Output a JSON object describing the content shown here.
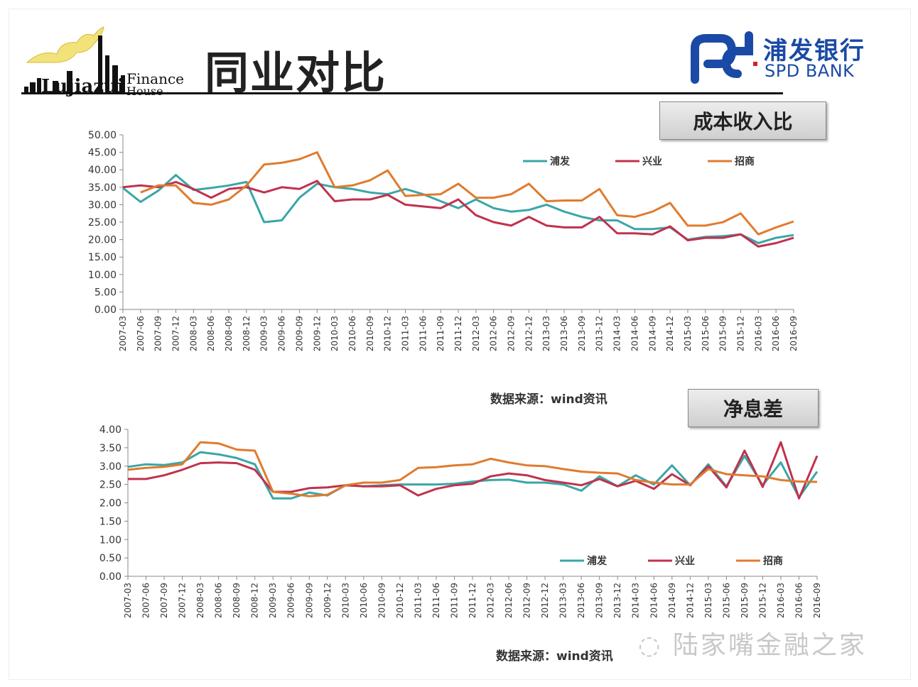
{
  "header": {
    "title": "同业对比",
    "logo_text_1": "Finance",
    "logo_text_2": "House",
    "logo_text_3": "Lujiazui",
    "bank_cn": "浦发银行",
    "bank_en": "SPD BANK"
  },
  "watermark": "陆家嘴金融之家",
  "colors": {
    "pufa": "#3aa6a8",
    "xingye": "#c0324c",
    "zhaoshang": "#e07b2e",
    "bank_blue": "#1a4aa5"
  },
  "chart_data": [
    {
      "type": "line",
      "title": "成本收入比",
      "source": "数据来源：wind资讯",
      "categories": [
        "2007-03",
        "2007-06",
        "2007-09",
        "2007-12",
        "2008-03",
        "2008-06",
        "2008-09",
        "2008-12",
        "2009-03",
        "2009-06",
        "2009-09",
        "2009-12",
        "2010-03",
        "2010-06",
        "2010-09",
        "2010-12",
        "2011-03",
        "2011-06",
        "2011-09",
        "2011-12",
        "2012-03",
        "2012-06",
        "2012-09",
        "2012-12",
        "2013-03",
        "2013-06",
        "2013-09",
        "2013-12",
        "2014-03",
        "2014-06",
        "2014-09",
        "2014-12",
        "2015-03",
        "2015-06",
        "2015-09",
        "2015-12",
        "2016-03",
        "2016-06",
        "2016-09"
      ],
      "ylim": [
        0,
        50
      ],
      "yticks": [
        "0.00",
        "5.00",
        "10.00",
        "15.00",
        "20.00",
        "25.00",
        "30.00",
        "35.00",
        "40.00",
        "45.00",
        "50.00"
      ],
      "legend_position": "top-right",
      "series": [
        {
          "name": "浦发",
          "color": "#3aa6a8",
          "values": [
            34.8,
            30.8,
            34.0,
            38.5,
            34.2,
            34.8,
            35.5,
            36.5,
            25.0,
            25.5,
            32.0,
            36.0,
            35.0,
            34.5,
            33.5,
            33.0,
            34.5,
            33.0,
            31.0,
            29.0,
            31.5,
            29.0,
            28.0,
            28.5,
            30.0,
            28.0,
            26.5,
            25.5,
            25.5,
            23.0,
            23.0,
            23.5,
            20.0,
            20.8,
            21.0,
            21.5,
            19.0,
            20.5,
            21.3
          ]
        },
        {
          "name": "兴业",
          "color": "#c0324c",
          "values": [
            35.0,
            35.5,
            35.0,
            36.5,
            34.5,
            32.0,
            34.5,
            35.0,
            33.5,
            35.0,
            34.5,
            36.8,
            31.0,
            31.5,
            31.5,
            32.8,
            30.0,
            29.5,
            29.0,
            31.5,
            27.0,
            25.0,
            24.0,
            26.5,
            24.0,
            23.5,
            23.5,
            26.5,
            21.8,
            21.8,
            21.5,
            23.8,
            19.8,
            20.5,
            20.5,
            21.5,
            18.0,
            19.0,
            20.5
          ]
        },
        {
          "name": "招商",
          "color": "#e07b2e",
          "values": [
            null,
            33.5,
            35.5,
            35.5,
            30.5,
            30.0,
            31.5,
            35.5,
            41.5,
            42.0,
            43.0,
            45.0,
            35.0,
            35.5,
            37.0,
            39.8,
            32.5,
            32.8,
            33.0,
            36.0,
            32.0,
            32.0,
            33.0,
            36.0,
            31.0,
            31.2,
            31.2,
            34.5,
            27.0,
            26.5,
            28.0,
            30.5,
            24.0,
            24.0,
            25.0,
            27.5,
            21.5,
            23.5,
            25.2
          ]
        }
      ]
    },
    {
      "type": "line",
      "title": "净息差",
      "source": "数据来源：wind资讯",
      "categories": [
        "2007-03",
        "2007-06",
        "2007-09",
        "2007-12",
        "2008-03",
        "2008-06",
        "2008-09",
        "2008-12",
        "2009-03",
        "2009-06",
        "2009-09",
        "2009-12",
        "2010-03",
        "2010-06",
        "2010-09",
        "2010-12",
        "2011-03",
        "2011-06",
        "2011-09",
        "2011-12",
        "2012-03",
        "2012-06",
        "2012-09",
        "2012-12",
        "2013-03",
        "2013-06",
        "2013-09",
        "2013-12",
        "2014-03",
        "2014-06",
        "2014-09",
        "2014-12",
        "2015-03",
        "2015-06",
        "2015-09",
        "2015-12",
        "2016-03",
        "2016-06",
        "2016-09"
      ],
      "ylim": [
        0,
        4
      ],
      "yticks": [
        "0.00",
        "0.50",
        "1.00",
        "1.50",
        "2.00",
        "2.50",
        "3.00",
        "3.50",
        "4.00"
      ],
      "legend_position": "bottom-right",
      "series": [
        {
          "name": "浦发",
          "color": "#3aa6a8",
          "values": [
            2.98,
            3.05,
            3.03,
            3.1,
            3.38,
            3.32,
            3.22,
            3.05,
            2.12,
            2.12,
            2.28,
            2.2,
            2.48,
            2.45,
            2.48,
            2.5,
            2.5,
            2.5,
            2.52,
            2.58,
            2.62,
            2.63,
            2.55,
            2.55,
            2.5,
            2.33,
            2.72,
            2.45,
            2.75,
            2.5,
            3.02,
            2.48,
            3.05,
            2.45,
            3.28,
            2.48,
            3.1,
            2.15,
            2.85
          ]
        },
        {
          "name": "兴业",
          "color": "#c0324c",
          "values": [
            2.65,
            2.65,
            2.75,
            2.9,
            3.08,
            3.1,
            3.08,
            2.9,
            2.3,
            2.3,
            2.4,
            2.42,
            2.48,
            2.45,
            2.45,
            2.48,
            2.2,
            2.38,
            2.48,
            2.52,
            2.72,
            2.8,
            2.75,
            2.62,
            2.55,
            2.48,
            2.65,
            2.45,
            2.6,
            2.38,
            2.78,
            2.48,
            3.0,
            2.42,
            3.42,
            2.43,
            3.65,
            2.12,
            3.28
          ]
        },
        {
          "name": "招商",
          "color": "#e07b2e",
          "values": [
            2.9,
            2.95,
            2.98,
            3.05,
            3.65,
            3.62,
            3.45,
            3.42,
            2.3,
            2.25,
            2.18,
            2.22,
            2.48,
            2.55,
            2.55,
            2.62,
            2.95,
            2.97,
            3.02,
            3.05,
            3.2,
            3.1,
            3.02,
            3.0,
            2.92,
            2.85,
            2.82,
            2.8,
            2.62,
            2.55,
            2.5,
            2.5,
            2.92,
            2.78,
            2.75,
            2.72,
            2.62,
            2.58,
            2.57
          ]
        }
      ]
    }
  ]
}
